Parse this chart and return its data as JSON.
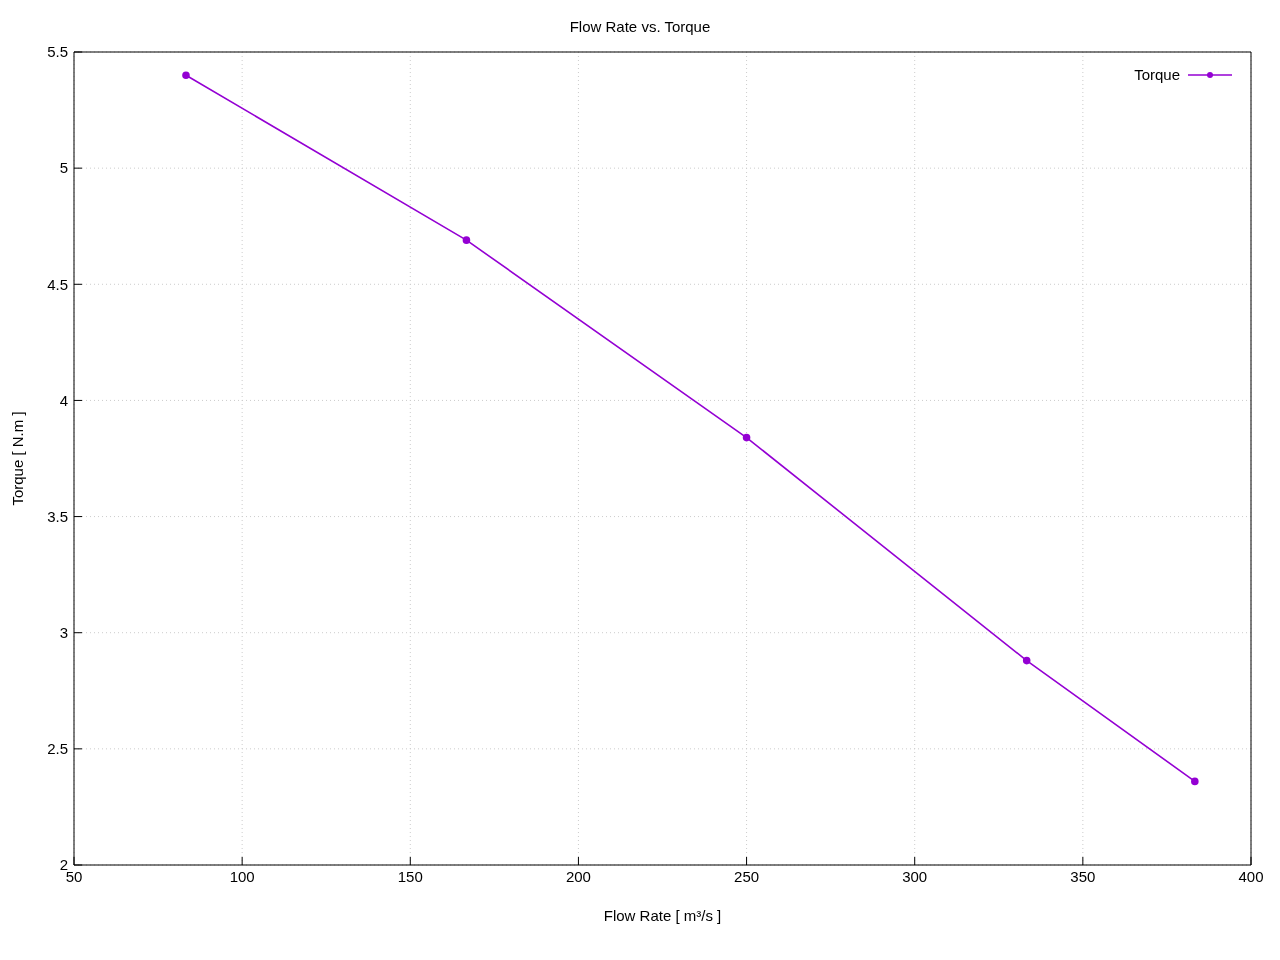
{
  "chart_data": {
    "type": "line",
    "title": "Flow Rate vs. Torque",
    "xlabel": "Flow Rate [ m³/s ]",
    "ylabel": "Torque [ N.m ]",
    "x": [
      83.3,
      166.7,
      250,
      333.3,
      383.3
    ],
    "series": [
      {
        "name": "Torque",
        "color": "#9400d3",
        "values": [
          5.4,
          4.69,
          3.84,
          2.88,
          2.36
        ]
      }
    ],
    "xlim": [
      50,
      400
    ],
    "xticks": [
      50,
      100,
      150,
      200,
      250,
      300,
      350,
      400
    ],
    "ylim": [
      2,
      5.5
    ],
    "yticks": [
      2,
      2.5,
      3,
      3.5,
      4,
      4.5,
      5,
      5.5
    ],
    "grid": true,
    "legend": "top right",
    "marker": "circle",
    "line_style": "solid"
  }
}
